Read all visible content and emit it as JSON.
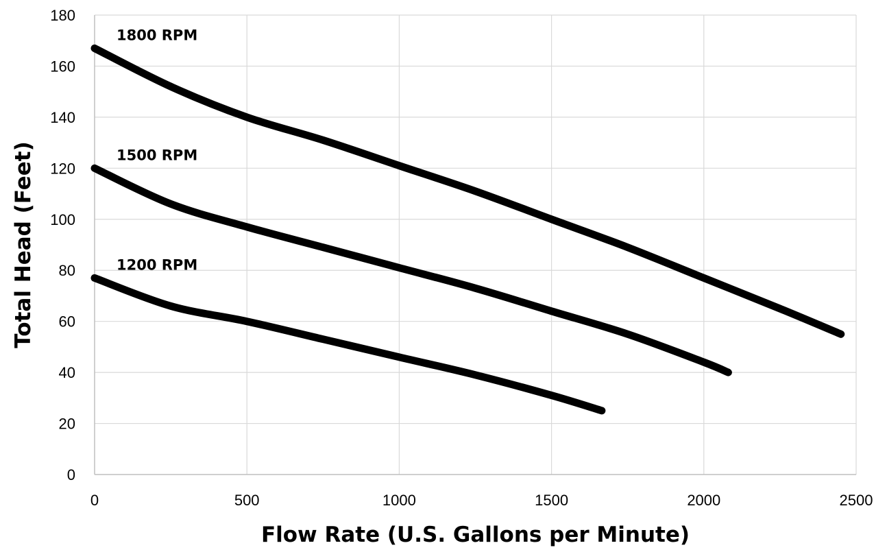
{
  "chart_data": {
    "type": "line",
    "title": "",
    "xlabel": "Flow Rate (U.S. Gallons per Minute)",
    "ylabel": "Total Head (Feet)",
    "xlim": [
      0,
      2500
    ],
    "ylim": [
      0,
      180
    ],
    "xticks": [
      0,
      500,
      1000,
      1500,
      2000,
      2500
    ],
    "yticks": [
      0,
      20,
      40,
      60,
      80,
      100,
      120,
      140,
      160,
      180
    ],
    "grid": true,
    "legend": "none",
    "series": [
      {
        "name": "1800 RPM",
        "color": "#000000",
        "x": [
          0,
          250,
          500,
          750,
          1000,
          1250,
          1500,
          1750,
          2000,
          2250,
          2450
        ],
        "y": [
          167,
          152,
          140,
          131,
          121,
          111,
          100,
          89,
          77,
          65,
          55
        ]
      },
      {
        "name": "1500 RPM",
        "color": "#000000",
        "x": [
          0,
          250,
          500,
          750,
          1000,
          1250,
          1500,
          1750,
          2000,
          2080
        ],
        "y": [
          120,
          106,
          97,
          89,
          81,
          73,
          64,
          55,
          44,
          40
        ]
      },
      {
        "name": "1200 RPM",
        "color": "#000000",
        "x": [
          0,
          250,
          500,
          750,
          1000,
          1250,
          1500,
          1665
        ],
        "y": [
          77,
          66,
          60,
          53,
          46,
          39,
          31,
          25
        ]
      }
    ]
  }
}
